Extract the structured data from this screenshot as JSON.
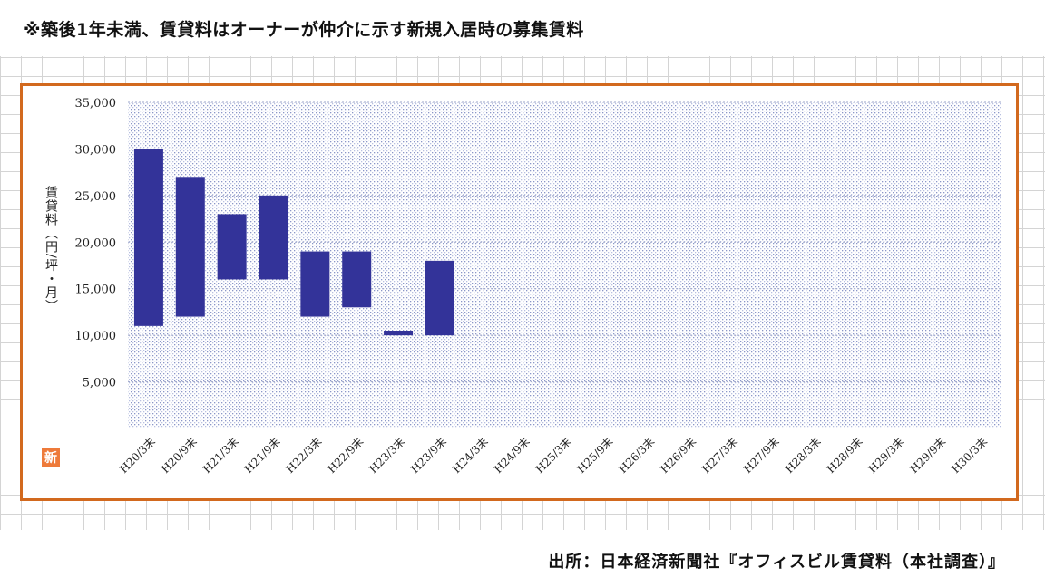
{
  "header": {
    "note": "※築後1年未満、賃貸料はオーナーが仲介に示す新規入居時の募集賃料"
  },
  "footer": {
    "source": "出所：日本経済新聞社『オフィスビル賃貸料（本社調査）』"
  },
  "logo": {
    "char": "新",
    "color": "#ee7a3a"
  },
  "chart_data": {
    "type": "bar",
    "subtype": "floating-range",
    "title": "",
    "xlabel": "",
    "ylabel": "賃貸料（円/坪・月）",
    "ylim": [
      0,
      35000
    ],
    "yticks": [
      5000,
      10000,
      15000,
      20000,
      25000,
      30000,
      35000
    ],
    "ytick_labels": [
      "5,000",
      "10,000",
      "15,000",
      "20,000",
      "25,000",
      "30,000",
      "35,000"
    ],
    "grid": true,
    "bar_color": "#333399",
    "frame_color": "#d2691e",
    "categories": [
      "H20/3末",
      "H20/9末",
      "H21/3末",
      "H21/9末",
      "H22/3末",
      "H22/9末",
      "H23/3末",
      "H23/9末",
      "H24/3末",
      "H24/9末",
      "H25/3末",
      "H25/9末",
      "H26/3末",
      "H26/9末",
      "H27/3末",
      "H27/9末",
      "H28/3末",
      "H28/9末",
      "H29/3末",
      "H29/9末",
      "H30/3末"
    ],
    "low": [
      11000,
      12000,
      16000,
      16000,
      12000,
      13000,
      10000,
      10000,
      null,
      null,
      null,
      null,
      null,
      null,
      null,
      null,
      null,
      null,
      null,
      null,
      null
    ],
    "high": [
      30000,
      27000,
      23000,
      25000,
      19000,
      19000,
      10500,
      18000,
      null,
      null,
      null,
      null,
      null,
      null,
      null,
      null,
      null,
      null,
      null,
      null,
      null
    ]
  }
}
